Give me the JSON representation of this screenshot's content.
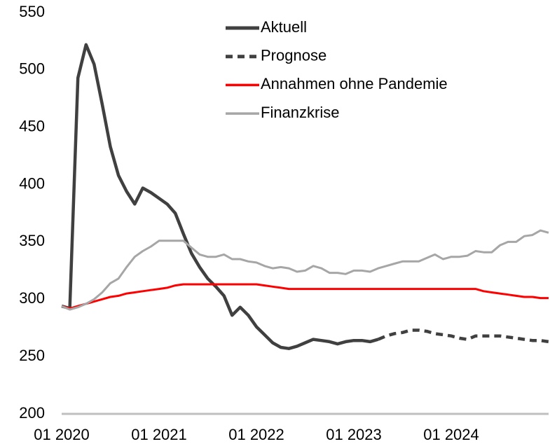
{
  "chart_data": {
    "type": "line",
    "categories": [
      "01 2020",
      null,
      null,
      null,
      null,
      null,
      null,
      null,
      null,
      null,
      null,
      null,
      "01 2021",
      null,
      null,
      null,
      null,
      null,
      null,
      null,
      null,
      null,
      null,
      null,
      "01 2022",
      null,
      null,
      null,
      null,
      null,
      null,
      null,
      null,
      null,
      null,
      null,
      "01 2023",
      null,
      null,
      null,
      null,
      null,
      null,
      null,
      null,
      null,
      null,
      null,
      "01 2024",
      null,
      null,
      null,
      null,
      null,
      null,
      null,
      null,
      null,
      null,
      null,
      null
    ],
    "series": [
      {
        "name": "Aktuell",
        "color": "#404040",
        "style": "solid",
        "values": [
          294,
          292,
          493,
          522,
          505,
          470,
          433,
          408,
          394,
          383,
          397,
          393,
          388,
          383,
          375,
          357,
          340,
          328,
          318,
          311,
          303,
          286,
          293,
          286,
          276,
          269,
          262,
          258,
          257,
          259,
          262,
          265,
          264,
          263,
          261,
          263,
          264,
          264,
          263,
          265,
          null,
          null,
          null,
          null,
          null,
          null,
          null,
          null,
          null,
          null,
          null,
          null,
          null,
          null,
          null,
          null,
          null,
          null,
          null,
          null,
          null
        ]
      },
      {
        "name": "Prognose",
        "color": "#404040",
        "style": "dashed",
        "values": [
          null,
          null,
          null,
          null,
          null,
          null,
          null,
          null,
          null,
          null,
          null,
          null,
          null,
          null,
          null,
          null,
          null,
          null,
          null,
          null,
          null,
          null,
          null,
          null,
          null,
          null,
          null,
          null,
          null,
          null,
          null,
          null,
          null,
          null,
          null,
          null,
          null,
          null,
          null,
          265,
          268,
          270,
          271,
          273,
          273,
          272,
          270,
          269,
          268,
          266,
          265,
          268,
          268,
          268,
          268,
          267,
          266,
          265,
          264,
          264,
          263
        ]
      },
      {
        "name": "Annahmen ohne Pandemie",
        "color": "#ff0000",
        "style": "solid",
        "values": [
          294,
          292,
          294,
          296,
          298,
          300,
          302,
          303,
          305,
          306,
          307,
          308,
          309,
          310,
          312,
          313,
          313,
          313,
          313,
          313,
          313,
          313,
          313,
          313,
          313,
          312,
          311,
          310,
          309,
          309,
          309,
          309,
          309,
          309,
          309,
          309,
          309,
          309,
          309,
          309,
          309,
          309,
          309,
          309,
          309,
          309,
          309,
          309,
          309,
          309,
          309,
          309,
          307,
          306,
          305,
          304,
          303,
          302,
          302,
          301,
          301
        ]
      },
      {
        "name": "Finanzkrise",
        "color": "#a6a6a6",
        "style": "solid",
        "values": [
          294,
          291,
          293,
          296,
          300,
          306,
          314,
          318,
          328,
          337,
          342,
          346,
          351,
          351,
          351,
          351,
          345,
          339,
          337,
          337,
          339,
          335,
          335,
          333,
          332,
          329,
          327,
          328,
          327,
          324,
          325,
          329,
          327,
          323,
          323,
          322,
          325,
          325,
          324,
          327,
          329,
          331,
          333,
          333,
          333,
          336,
          339,
          335,
          337,
          337,
          338,
          342,
          341,
          341,
          347,
          350,
          350,
          355,
          356,
          360,
          358
        ]
      }
    ],
    "ylim": [
      200,
      550
    ],
    "yticks": [
      200,
      250,
      300,
      350,
      400,
      450,
      500,
      550
    ],
    "legend": "upper center"
  }
}
